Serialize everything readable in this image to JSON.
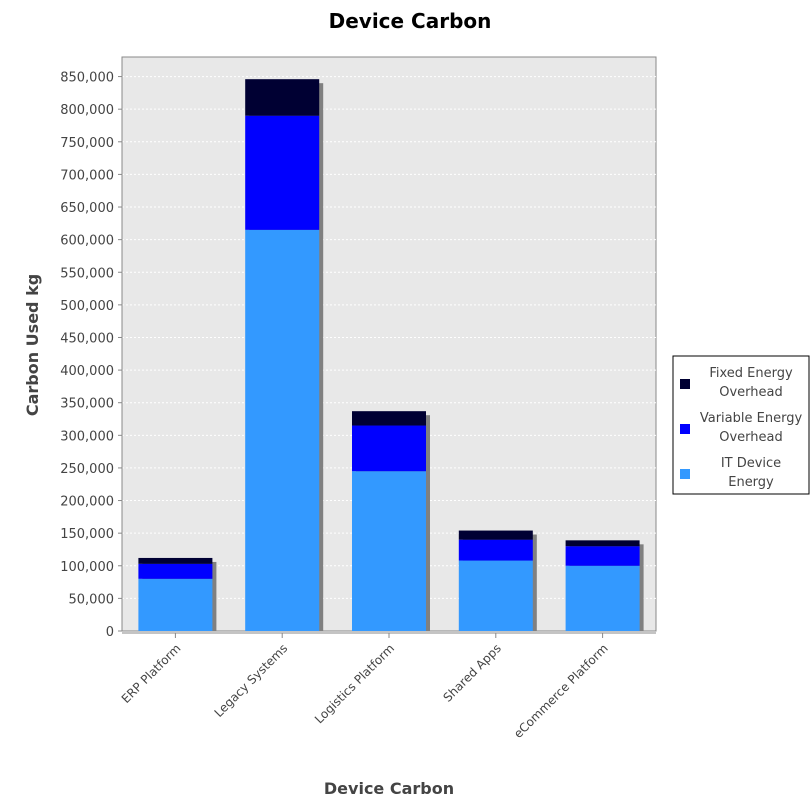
{
  "chart_data": {
    "type": "bar",
    "stacked": true,
    "title": "Device Carbon",
    "xlabel": "Device Carbon",
    "ylabel": "Carbon Used kg",
    "ylim": [
      0,
      880000
    ],
    "yticks": [
      0,
      50000,
      100000,
      150000,
      200000,
      250000,
      300000,
      350000,
      400000,
      450000,
      500000,
      550000,
      600000,
      650000,
      700000,
      750000,
      800000,
      850000
    ],
    "ytick_labels": [
      "0",
      "50,000",
      "100,000",
      "150,000",
      "200,000",
      "250,000",
      "300,000",
      "350,000",
      "400,000",
      "450,000",
      "500,000",
      "550,000",
      "600,000",
      "650,000",
      "700,000",
      "750,000",
      "800,000",
      "850,000"
    ],
    "categories": [
      "ERP Platform",
      "Legacy Systems",
      "Logistics Platform",
      "Shared Apps",
      "eCommerce Platform"
    ],
    "series": [
      {
        "name": "IT Device Energy",
        "legend_lines": [
          "IT Device",
          "Energy"
        ],
        "color": "#3399ff",
        "values": [
          80000,
          615000,
          245000,
          108000,
          100000
        ]
      },
      {
        "name": "Variable Energy Overhead",
        "legend_lines": [
          "Variable Energy",
          "Overhead"
        ],
        "color": "#0000ff",
        "values": [
          23000,
          175000,
          70000,
          32000,
          30000
        ]
      },
      {
        "name": "Fixed Energy Overhead",
        "legend_lines": [
          "Fixed Energy",
          "Overhead"
        ],
        "color": "#000033",
        "values": [
          9000,
          56000,
          22000,
          14000,
          9000
        ]
      }
    ],
    "legend_order": [
      2,
      1,
      0
    ],
    "legend_position": "right",
    "grid": true,
    "colors": {
      "plot_background": "#e8e8e8",
      "gridline": "#ffffff",
      "axis": "#888888",
      "shadow": "#808080"
    }
  }
}
